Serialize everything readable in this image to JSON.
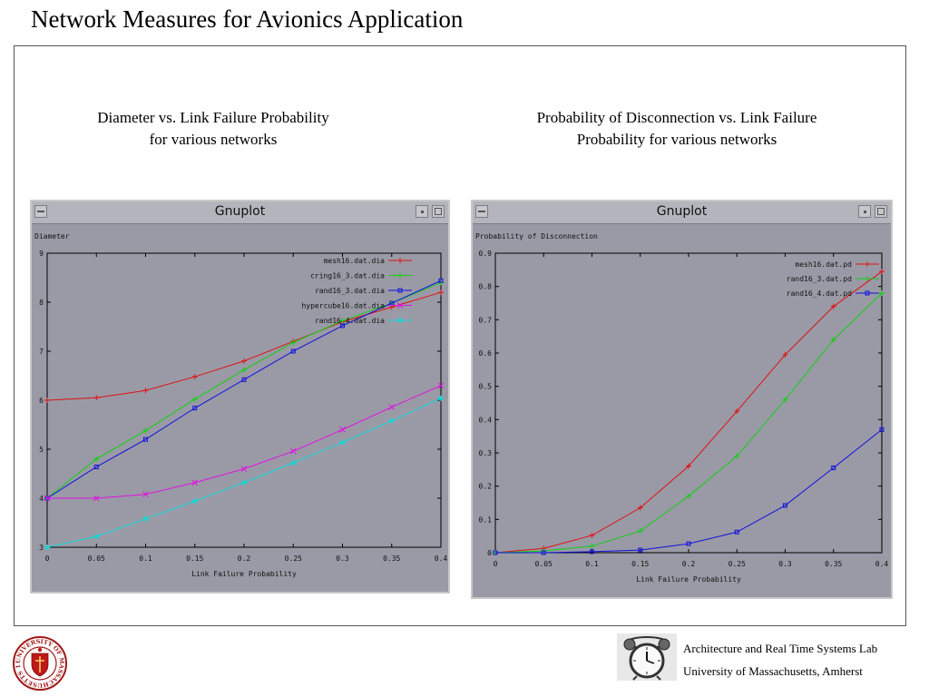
{
  "slide": {
    "title": "Network Measures for Avionics Application"
  },
  "panels": [
    {
      "caption_line1": "Diameter vs. Link Failure Probability",
      "caption_line2": "for various networks",
      "window_title": "Gnuplot"
    },
    {
      "caption_line1": "Probability of Disconnection vs. Link Failure",
      "caption_line2": "Probability for various networks",
      "window_title": "Gnuplot"
    }
  ],
  "footer": {
    "line1": "Architecture and Real Time Systems Lab",
    "line2": "University of Massachusetts, Amherst",
    "seal_text": "UNIVERSITY OF MASSACHUSETTS 1863"
  },
  "colors": {
    "plot_background": "#9a9aa6",
    "red": "#e01010",
    "green": "#10d010",
    "blue": "#1010e0",
    "magenta": "#e010e0",
    "cyan": "#10d8d8"
  },
  "chart_data": [
    {
      "type": "line",
      "ylabel": "Diameter",
      "xlabel": "Link Failure Probability",
      "xlim": [
        0,
        0.4
      ],
      "ylim": [
        3,
        9
      ],
      "xticks": [
        "0",
        "0.05",
        "0.1",
        "0.15",
        "0.2",
        "0.25",
        "0.3",
        "0.35",
        "0.4"
      ],
      "yticks": [
        "3",
        "4",
        "5",
        "6",
        "7",
        "8",
        "9"
      ],
      "legend_position": "top-right",
      "x": [
        0,
        0.05,
        0.1,
        0.15,
        0.2,
        0.25,
        0.3,
        0.35,
        0.4
      ],
      "series": [
        {
          "name": "mesh16.dat.dia",
          "color": "#e01010",
          "marker": "plus",
          "values": [
            6.0,
            6.05,
            6.2,
            6.48,
            6.8,
            7.2,
            7.6,
            7.9,
            8.2
          ]
        },
        {
          "name": "cring16_3.dat.dia",
          "color": "#10d010",
          "marker": "plus",
          "values": [
            4.0,
            4.8,
            5.38,
            6.02,
            6.62,
            7.18,
            7.62,
            7.98,
            8.4
          ]
        },
        {
          "name": "rand16_3.dat.dia",
          "color": "#1010e0",
          "marker": "square",
          "values": [
            4.0,
            4.64,
            5.2,
            5.84,
            6.42,
            7.0,
            7.52,
            7.98,
            8.44
          ]
        },
        {
          "name": "hypercube16.dat.dia",
          "color": "#e010e0",
          "marker": "cross",
          "values": [
            4.0,
            4.0,
            4.08,
            4.32,
            4.6,
            4.96,
            5.4,
            5.86,
            6.3
          ]
        },
        {
          "name": "rand16_4.dat.dia",
          "color": "#10d8d8",
          "marker": "star",
          "values": [
            3.0,
            3.22,
            3.58,
            3.94,
            4.32,
            4.72,
            5.14,
            5.58,
            6.04
          ]
        }
      ]
    },
    {
      "type": "line",
      "ylabel": "Probability of Disconnection",
      "xlabel": "Link Failure Probability",
      "xlim": [
        0,
        0.4
      ],
      "ylim": [
        0,
        0.9
      ],
      "xticks": [
        "0",
        "0.05",
        "0.1",
        "0.15",
        "0.2",
        "0.25",
        "0.3",
        "0.35",
        "0.4"
      ],
      "yticks": [
        "0",
        "0.1",
        "0.2",
        "0.3",
        "0.4",
        "0.5",
        "0.6",
        "0.7",
        "0.8",
        "0.9"
      ],
      "legend_position": "top-right",
      "x": [
        0,
        0.05,
        0.1,
        0.15,
        0.2,
        0.25,
        0.3,
        0.35,
        0.4
      ],
      "series": [
        {
          "name": "mesh16.dat.pd",
          "color": "#e01010",
          "marker": "plus",
          "values": [
            0.0,
            0.013,
            0.052,
            0.135,
            0.26,
            0.425,
            0.595,
            0.74,
            0.845
          ]
        },
        {
          "name": "rand16_3.dat.pd",
          "color": "#10d010",
          "marker": "plus",
          "values": [
            0.0,
            0.005,
            0.02,
            0.065,
            0.17,
            0.29,
            0.46,
            0.64,
            0.78
          ]
        },
        {
          "name": "rand16_4.dat.pd",
          "color": "#1010e0",
          "marker": "square",
          "values": [
            0.0,
            0.0,
            0.003,
            0.008,
            0.027,
            0.062,
            0.142,
            0.255,
            0.37
          ]
        }
      ]
    }
  ]
}
